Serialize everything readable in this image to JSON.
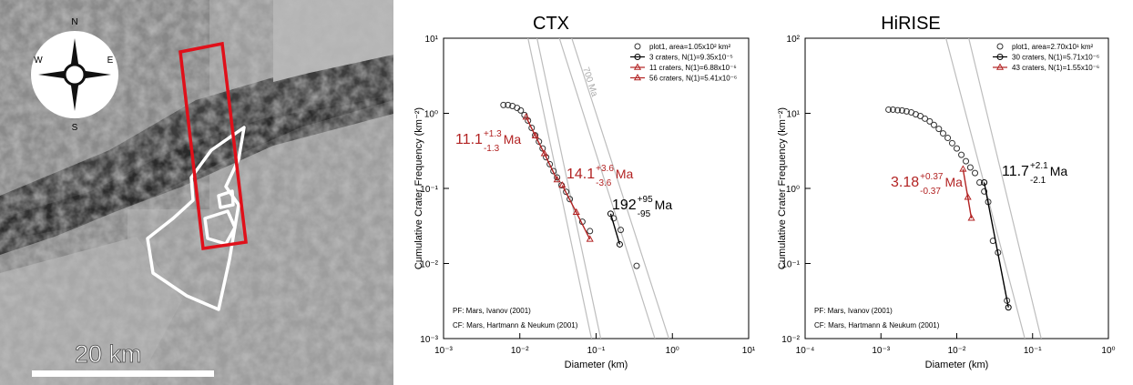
{
  "map": {
    "compass": [
      "N",
      "E",
      "S",
      "W"
    ],
    "scale_label": "20 km"
  },
  "chart_data": [
    {
      "type": "scatter",
      "title": "CTX",
      "x_label": "Diameter (km)",
      "y_label": "Cumulative Crater Frequency (km⁻²)",
      "x_scale": "log",
      "y_scale": "log",
      "xlim": [
        0.001,
        10
      ],
      "ylim": [
        0.001,
        10
      ],
      "xticks": [
        {
          "value": 0.001,
          "label": "10⁻³"
        },
        {
          "value": 0.01,
          "label": "10⁻²"
        },
        {
          "value": 0.1,
          "label": "10⁻¹"
        },
        {
          "value": 1,
          "label": "10⁰"
        },
        {
          "value": 10,
          "label": "10¹"
        }
      ],
      "yticks": [
        {
          "value": 0.001,
          "label": "10⁻³"
        },
        {
          "value": 0.01,
          "label": "10⁻²"
        },
        {
          "value": 0.1,
          "label": "10⁻¹"
        },
        {
          "value": 1,
          "label": "10⁰"
        },
        {
          "value": 10,
          "label": "10¹"
        }
      ],
      "series": [
        {
          "name": "plot1, area=1.05x10² km²",
          "color": "#333333",
          "marker": "circle",
          "line": false,
          "x": [
            0.0061,
            0.007,
            0.008,
            0.0092,
            0.0103,
            0.0115,
            0.0128,
            0.0143,
            0.0159,
            0.0178,
            0.0199,
            0.0221,
            0.0247,
            0.0276,
            0.0308,
            0.0353,
            0.0405,
            0.0452,
            0.066,
            0.083,
            0.17,
            0.21,
            0.34
          ],
          "values": [
            1.29,
            1.29,
            1.25,
            1.18,
            1.09,
            0.95,
            0.8,
            0.64,
            0.51,
            0.42,
            0.34,
            0.26,
            0.21,
            0.17,
            0.14,
            0.11,
            0.09,
            0.072,
            0.036,
            0.027,
            0.04,
            0.028,
            0.0093
          ]
        },
        {
          "name": "3 craters, N(1)=9.35x10⁻⁵",
          "color": "#000000",
          "marker": "circle",
          "line": true,
          "x": [
            0.155,
            0.204
          ],
          "values": [
            0.046,
            0.018
          ]
        },
        {
          "name": "11 craters, N(1)=6.88x10⁻⁶",
          "color": "#b22222",
          "marker": "triangle",
          "line": true,
          "x": [
            0.036,
            0.055,
            0.083
          ],
          "values": [
            0.11,
            0.048,
            0.021
          ]
        },
        {
          "name": "56 craters, N(1)=5.41x10⁻⁶",
          "color": "#b22222",
          "marker": "triangle",
          "line": true,
          "x": [
            0.0121,
            0.016,
            0.021,
            0.0308
          ],
          "values": [
            0.89,
            0.5,
            0.29,
            0.13
          ]
        }
      ],
      "isochrons": {
        "color": "#bdbdbd",
        "label": "700 Ma",
        "lines": [
          {
            "x": [
              0.0128,
              0.087
            ],
            "values": [
              10,
              0.001
            ]
          },
          {
            "x": [
              0.0168,
              0.115
            ],
            "values": [
              10,
              0.001
            ]
          },
          {
            "x": [
              0.033,
              0.59
            ],
            "values": [
              10,
              0.001
            ]
          },
          {
            "x": [
              0.048,
              0.9
            ],
            "values": [
              10,
              0.001
            ]
          }
        ]
      },
      "annotations": [
        {
          "text": "11.1",
          "plus": "+1.3",
          "minus": "-1.3",
          "unit": "Ma",
          "color": "#b22222"
        },
        {
          "text": "14.1",
          "plus": "+3.6",
          "minus": "-3.6",
          "unit": "Ma",
          "color": "#b22222"
        },
        {
          "text": "192",
          "plus": "+95",
          "minus": "-95",
          "unit": "Ma",
          "color": "#000000"
        }
      ],
      "notes": [
        "PF: Mars, Ivanov (2001)",
        "CF: Mars, Hartmann & Neukum (2001)"
      ]
    },
    {
      "type": "scatter",
      "title": "HiRISE",
      "x_label": "Diameter (km)",
      "y_label": "Cumulative Crater Frequency (km⁻²)",
      "x_scale": "log",
      "y_scale": "log",
      "xlim": [
        0.0001,
        1
      ],
      "ylim": [
        0.01,
        100
      ],
      "xticks": [
        {
          "value": 0.0001,
          "label": "10⁻⁴"
        },
        {
          "value": 0.001,
          "label": "10⁻³"
        },
        {
          "value": 0.01,
          "label": "10⁻²"
        },
        {
          "value": 0.1,
          "label": "10⁻¹"
        },
        {
          "value": 1,
          "label": "10⁰"
        }
      ],
      "yticks": [
        {
          "value": 0.01,
          "label": "10⁻²"
        },
        {
          "value": 0.1,
          "label": "10⁻¹"
        },
        {
          "value": 1,
          "label": "10⁰"
        },
        {
          "value": 10,
          "label": "10¹"
        },
        {
          "value": 100,
          "label": "10²"
        }
      ],
      "series": [
        {
          "name": "plot1, area=2.70x10¹ km²",
          "color": "#333333",
          "marker": "circle",
          "line": false,
          "x": [
            0.00126,
            0.00144,
            0.00166,
            0.0019,
            0.00218,
            0.00251,
            0.00288,
            0.00331,
            0.0038,
            0.0044,
            0.005,
            0.0058,
            0.0066,
            0.0076,
            0.0087,
            0.01,
            0.0115,
            0.0132,
            0.0151,
            0.0174,
            0.02,
            0.023,
            0.026,
            0.03,
            0.035,
            0.046
          ],
          "values": [
            11.2,
            11.2,
            11.0,
            10.9,
            10.6,
            10.3,
            9.7,
            9.2,
            8.5,
            7.8,
            7.0,
            6.2,
            5.4,
            4.7,
            4.0,
            3.4,
            2.8,
            2.3,
            1.9,
            1.6,
            1.2,
            0.91,
            0.66,
            0.2,
            0.14,
            0.032
          ]
        },
        {
          "name": "30 craters, N(1)=5.71x10⁻⁶",
          "color": "#000000",
          "marker": "circle",
          "line": true,
          "x": [
            0.023,
            0.048
          ],
          "values": [
            1.2,
            0.026
          ]
        },
        {
          "name": "43 craters, N(1)=1.55x10⁻⁶",
          "color": "#b22222",
          "marker": "triangle",
          "line": true,
          "x": [
            0.0121,
            0.014,
            0.0156
          ],
          "values": [
            1.8,
            0.76,
            0.4
          ]
        }
      ],
      "isochrons": {
        "color": "#bdbdbd",
        "lines": [
          {
            "x": [
              0.0072,
              0.079
            ],
            "values": [
              100,
              0.01
            ]
          },
          {
            "x": [
              0.0144,
              0.13
            ],
            "values": [
              100,
              0.01
            ]
          }
        ]
      },
      "annotations": [
        {
          "text": "3.18",
          "plus": "+0.37",
          "minus": "-0.37",
          "unit": "Ma",
          "color": "#b22222"
        },
        {
          "text": "11.7",
          "plus": "+2.1",
          "minus": "-2.1",
          "unit": "Ma",
          "color": "#000000"
        }
      ],
      "notes": [
        "PF: Mars, Ivanov (2001)",
        "CF: Mars, Hartmann & Neukum (2001)"
      ]
    }
  ]
}
